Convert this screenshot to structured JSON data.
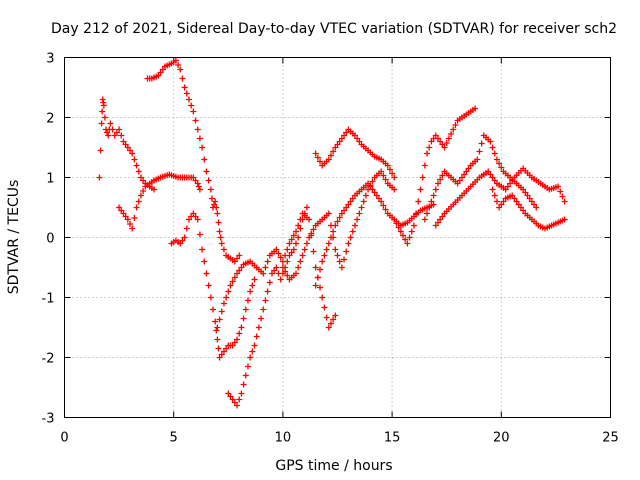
{
  "chart_data": {
    "type": "scatter",
    "title": "Day 212 of 2021, Sidereal Day-to-day VTEC variation (SDTVAR) for receiver sch2",
    "xlabel": "GPS time / hours",
    "ylabel": "SDTVAR / TECUs",
    "xlim": [
      0,
      25
    ],
    "ylim": [
      -3,
      3
    ],
    "xticks": [
      0,
      5,
      10,
      15,
      20,
      25
    ],
    "yticks": [
      -3,
      -2,
      -1,
      0,
      1,
      2,
      3
    ],
    "grid": true,
    "marker": "plus",
    "color": "#ff0000",
    "series": [
      {
        "x": [
          1.6,
          1.7,
          1.75,
          1.8,
          1.9,
          2.0,
          2.1,
          2.3,
          2.5,
          2.7,
          2.9,
          3.1,
          3.3,
          3.5,
          3.7,
          3.9,
          4.1
        ],
        "y": [
          1.0,
          1.9,
          2.3,
          2.2,
          1.8,
          1.7,
          1.9,
          1.7,
          1.8,
          1.6,
          1.5,
          1.4,
          1.2,
          1.0,
          0.9,
          0.85,
          0.8
        ]
      },
      {
        "x": [
          2.5,
          2.7,
          2.9,
          3.1,
          3.3,
          3.5,
          3.7,
          3.9,
          4.1,
          4.4,
          4.8,
          5.2,
          5.6,
          5.9,
          6.1,
          6.2
        ],
        "y": [
          0.5,
          0.4,
          0.3,
          0.15,
          0.5,
          0.7,
          0.85,
          0.9,
          0.95,
          1.0,
          1.05,
          1.0,
          1.0,
          1.0,
          0.9,
          0.8
        ]
      },
      {
        "x": [
          3.8,
          4.0,
          4.3,
          4.6,
          4.9,
          5.1,
          5.3,
          5.5,
          5.7,
          5.9,
          6.1,
          6.3,
          6.5,
          6.7,
          6.8,
          6.9,
          7.0,
          7.1,
          7.2,
          7.4,
          7.6,
          7.8,
          8.0
        ],
        "y": [
          2.65,
          2.65,
          2.7,
          2.85,
          2.9,
          2.95,
          2.8,
          2.5,
          2.3,
          2.1,
          1.8,
          1.5,
          1.1,
          0.8,
          0.5,
          0.6,
          0.4,
          0.1,
          -0.1,
          -0.3,
          -0.35,
          -0.4,
          -0.3
        ]
      },
      {
        "x": [
          4.9,
          5.1,
          5.3,
          5.5,
          5.7,
          5.9,
          6.1,
          6.3,
          6.5,
          6.7,
          6.9,
          7.0,
          7.1,
          7.3,
          7.5,
          7.7,
          7.9,
          8.1,
          8.3,
          8.5,
          8.7
        ],
        "y": [
          -0.1,
          -0.05,
          -0.1,
          0.0,
          0.3,
          0.4,
          0.3,
          -0.2,
          -0.6,
          -1.0,
          -1.4,
          -1.7,
          -2.0,
          -1.9,
          -1.8,
          -1.8,
          -1.7,
          -1.5,
          -1.2,
          -0.9,
          -0.7
        ]
      },
      {
        "x": [
          7.5,
          7.7,
          7.9,
          8.1,
          8.3,
          8.5,
          8.7,
          8.9,
          9.1,
          9.3,
          9.5,
          9.7,
          9.9,
          10.1,
          10.3,
          10.5,
          10.7,
          10.9,
          11.1
        ],
        "y": [
          -2.6,
          -2.7,
          -2.8,
          -2.6,
          -2.3,
          -2.0,
          -1.8,
          -1.5,
          -1.2,
          -0.9,
          -0.6,
          -0.5,
          -0.7,
          -0.5,
          -0.3,
          -0.2,
          0.0,
          0.3,
          0.5
        ]
      },
      {
        "x": [
          7.0,
          7.3,
          7.6,
          7.9,
          8.2,
          8.5,
          8.8,
          9.1,
          9.4,
          9.7,
          10.0,
          10.3,
          10.6,
          10.9,
          11.2,
          11.5,
          11.8,
          12.1,
          12.4
        ],
        "y": [
          -1.5,
          -1.1,
          -0.8,
          -0.6,
          -0.45,
          -0.4,
          -0.5,
          -0.6,
          -0.3,
          -0.2,
          -0.4,
          -0.1,
          0.1,
          0.4,
          0.3,
          -0.5,
          -1.0,
          -1.5,
          -1.3
        ]
      },
      {
        "x": [
          10.0,
          10.3,
          10.6,
          10.9,
          11.2,
          11.5,
          11.8,
          12.1,
          12.4,
          12.7,
          13.0,
          13.3,
          13.6,
          13.9,
          14.2,
          14.5,
          14.8,
          15.1
        ],
        "y": [
          -0.5,
          -0.7,
          -0.6,
          -0.3,
          0.0,
          0.2,
          0.3,
          0.4,
          -0.2,
          -0.5,
          -0.1,
          0.2,
          0.5,
          0.8,
          1.0,
          1.1,
          0.9,
          0.8
        ]
      },
      {
        "x": [
          11.5,
          11.8,
          12.1,
          12.4,
          12.7,
          13.0,
          13.3,
          13.6,
          13.9,
          14.2,
          14.5,
          14.8,
          15.1,
          15.4,
          15.7,
          16.0,
          16.3,
          16.6,
          16.9
        ],
        "y": [
          -0.8,
          -0.4,
          -0.1,
          0.2,
          0.4,
          0.55,
          0.7,
          0.8,
          0.9,
          0.75,
          0.6,
          0.4,
          0.3,
          0.2,
          0.25,
          0.35,
          0.45,
          0.5,
          0.55
        ]
      },
      {
        "x": [
          11.5,
          11.8,
          12.1,
          12.4,
          12.7,
          13.0,
          13.3,
          13.6,
          13.9,
          14.2,
          14.5,
          14.8,
          15.1
        ],
        "y": [
          1.4,
          1.2,
          1.3,
          1.5,
          1.65,
          1.8,
          1.7,
          1.55,
          1.45,
          1.35,
          1.3,
          1.2,
          1.0
        ]
      },
      {
        "x": [
          15.1,
          15.4,
          15.7,
          16.0,
          16.2,
          16.4,
          16.6,
          16.8,
          17.0,
          17.2,
          17.4,
          17.6,
          17.8,
          18.0,
          18.2,
          18.4,
          18.6,
          18.8
        ],
        "y": [
          0.3,
          0.1,
          -0.1,
          0.2,
          0.6,
          1.0,
          1.4,
          1.6,
          1.7,
          1.6,
          1.5,
          1.65,
          1.8,
          1.95,
          2.0,
          2.05,
          2.1,
          2.15
        ]
      },
      {
        "x": [
          16.5,
          16.8,
          17.1,
          17.4,
          17.7,
          18.0,
          18.3,
          18.6,
          18.9,
          19.2,
          19.5,
          19.8,
          20.1,
          20.4,
          20.7,
          21.0,
          21.3,
          21.6
        ],
        "y": [
          0.3,
          0.6,
          0.9,
          1.1,
          1.0,
          0.9,
          1.05,
          1.2,
          1.3,
          1.7,
          1.6,
          1.3,
          1.1,
          1.0,
          0.9,
          0.8,
          0.65,
          0.5
        ]
      },
      {
        "x": [
          17.0,
          17.4,
          17.8,
          18.2,
          18.6,
          19.0,
          19.4,
          19.8,
          20.2,
          20.6,
          21.0,
          21.4,
          21.8,
          22.2,
          22.6,
          22.9
        ],
        "y": [
          0.2,
          0.4,
          0.55,
          0.7,
          0.85,
          1.0,
          1.1,
          0.9,
          0.8,
          1.0,
          1.15,
          1.0,
          0.9,
          0.8,
          0.85,
          0.6
        ]
      },
      {
        "x": [
          19.6,
          19.9,
          20.2,
          20.5,
          20.8,
          21.1,
          21.4,
          21.7,
          22.0,
          22.3,
          22.6,
          22.9
        ],
        "y": [
          0.8,
          0.5,
          0.65,
          0.7,
          0.55,
          0.4,
          0.3,
          0.2,
          0.15,
          0.2,
          0.25,
          0.3
        ]
      }
    ]
  }
}
